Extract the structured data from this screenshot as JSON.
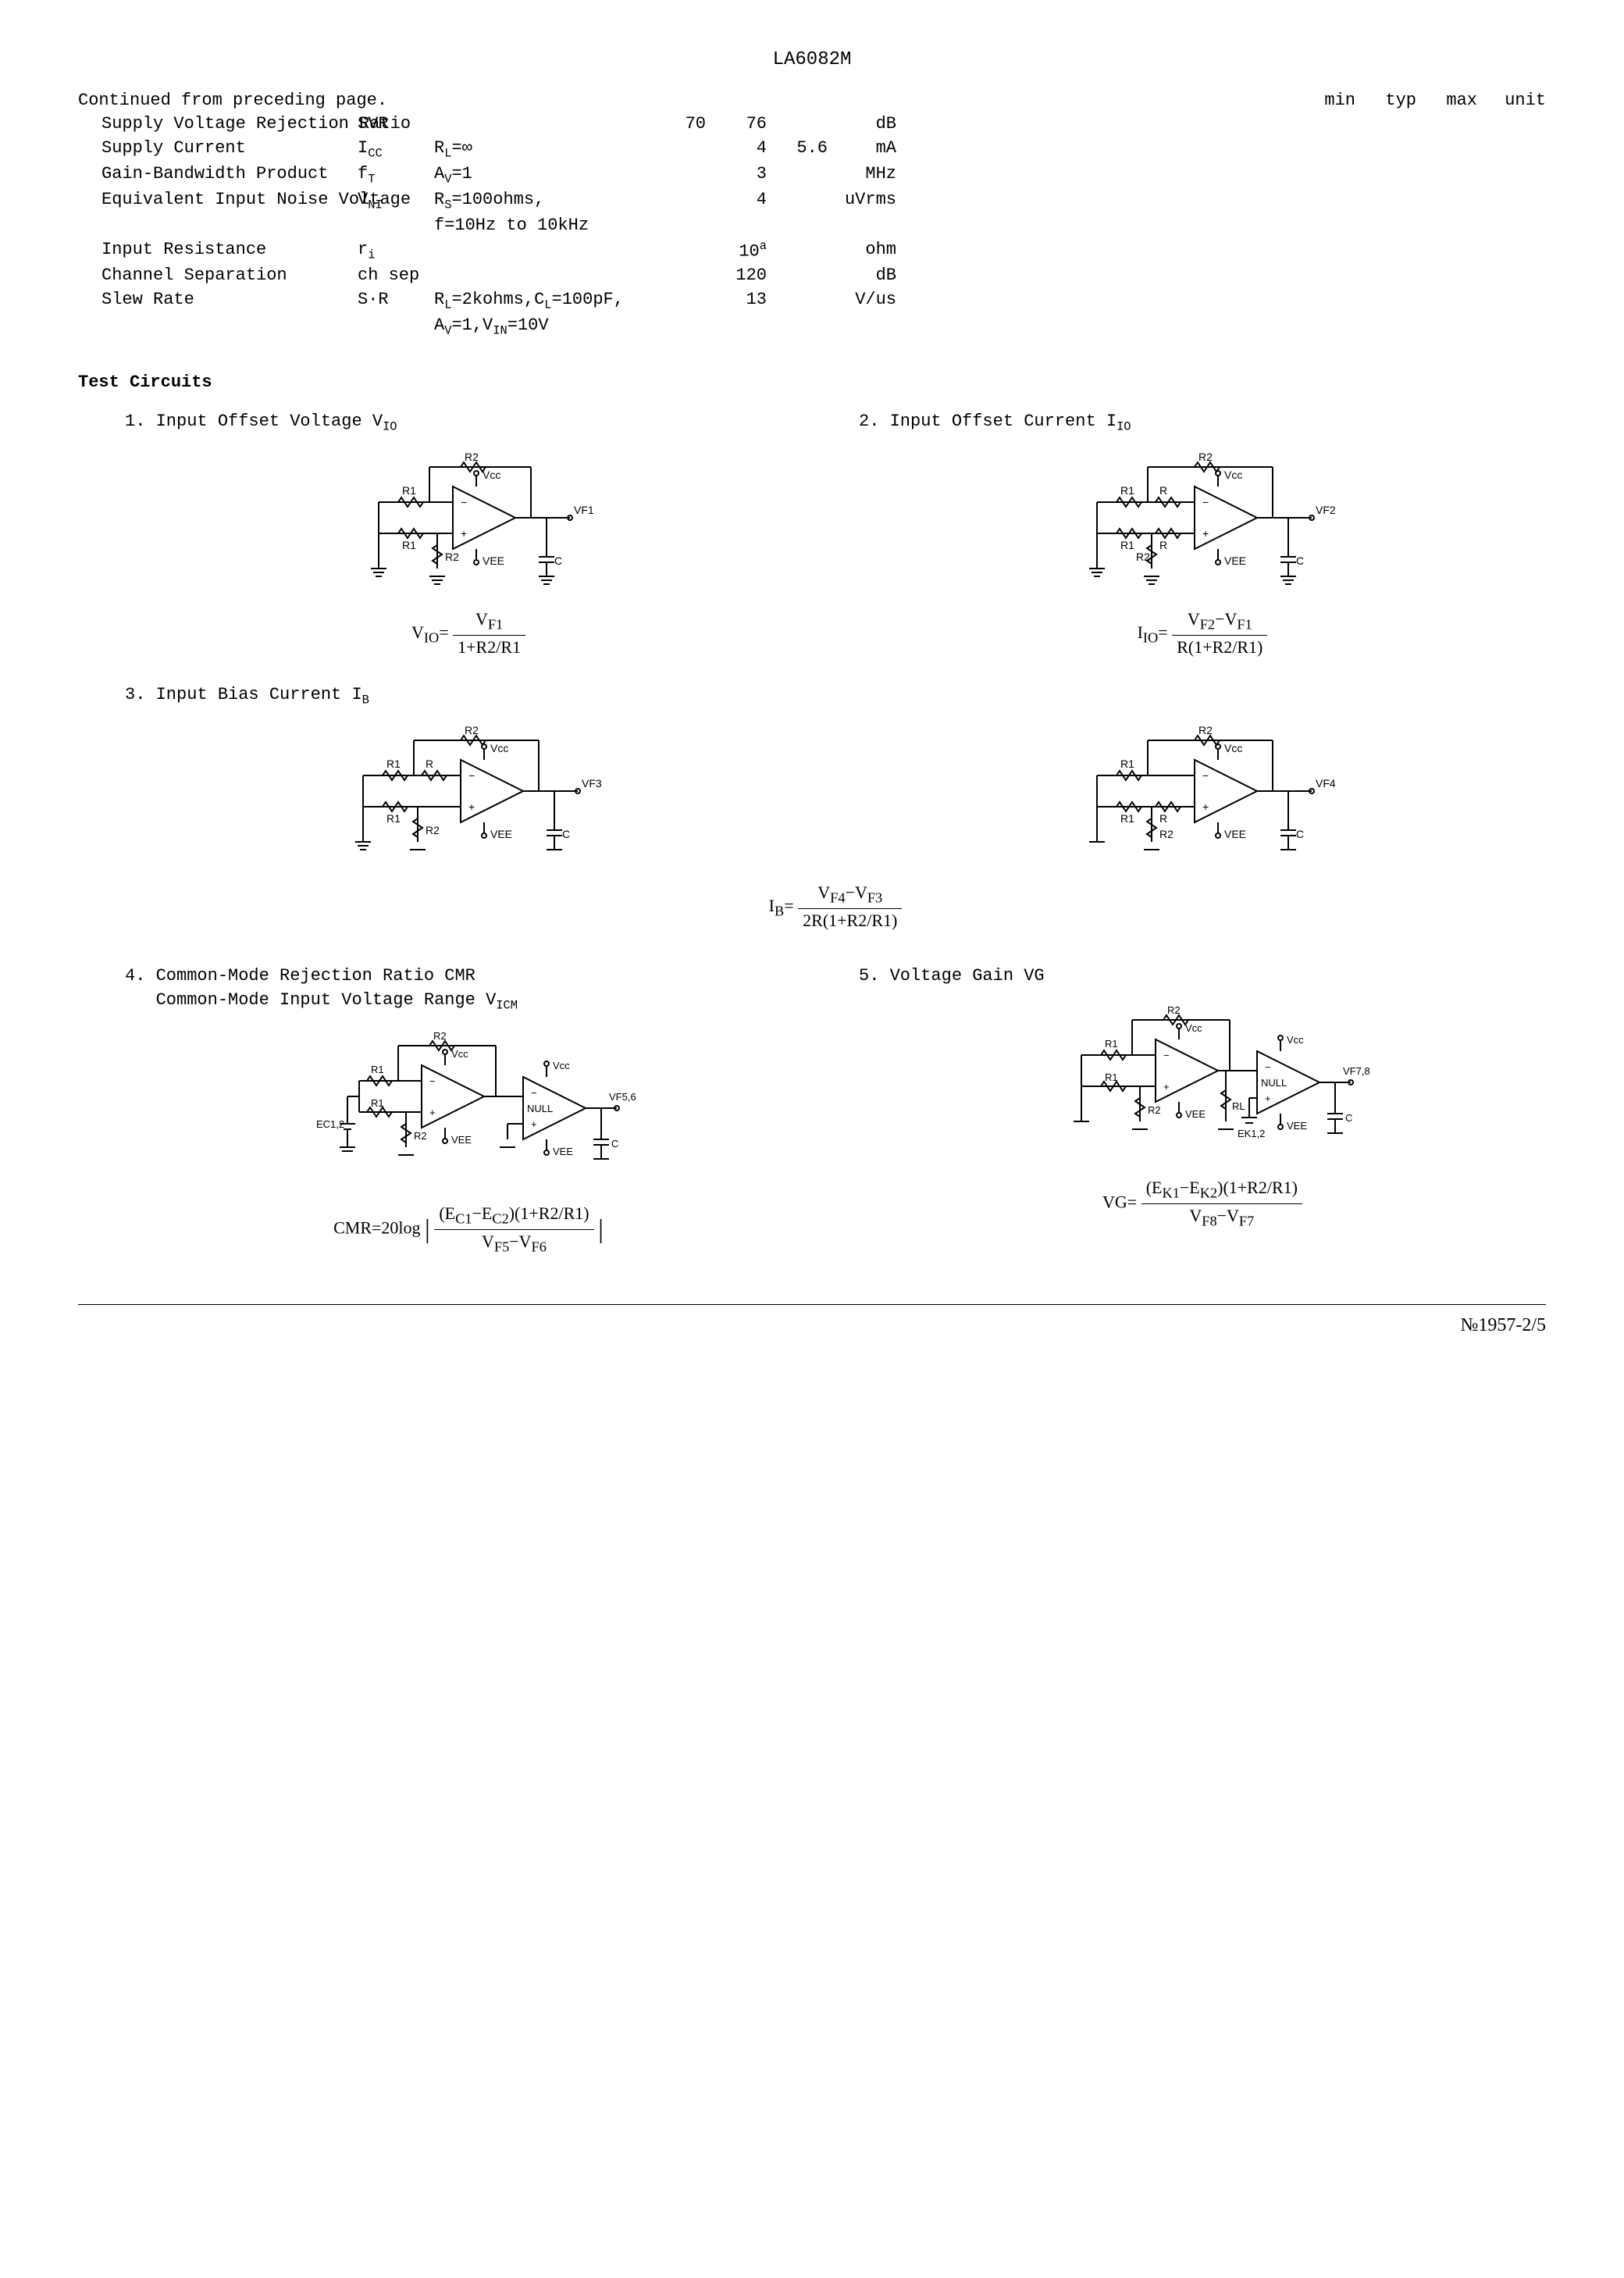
{
  "page_title": "LA6082M",
  "continued_text": "Continued from preceding page.",
  "table_headers": {
    "min": "min",
    "typ": "typ",
    "max": "max",
    "unit": "unit"
  },
  "spec_rows": [
    {
      "param": "Supply Voltage Rejection Ratio",
      "sym": "SVR",
      "cond": "",
      "min": "70",
      "typ": "76",
      "max": "",
      "unit": "dB"
    },
    {
      "param": "Supply Current",
      "sym_html": "I<span class='sub'>CC</span>",
      "cond_html": "R<span class='sub'>L</span>=∞",
      "min": "",
      "typ": "4",
      "max": "5.6",
      "unit": "mA"
    },
    {
      "param": "Gain-Bandwidth Product",
      "sym_html": "f<span class='sub'>T</span>",
      "cond_html": "A<span class='sub'>V</span>=1",
      "min": "",
      "typ": "3",
      "max": "",
      "unit": "MHz"
    },
    {
      "param": "Equivalent Input Noise Voltage",
      "sym_html": "V<span class='sub'>NI</span>",
      "cond_html": "R<span class='sub'>S</span>=100ohms,<br>f=10Hz to 10kHz",
      "min": "",
      "typ": "4",
      "max": "",
      "unit": "uVrms"
    },
    {
      "param": "Input Resistance",
      "sym_html": "r<span class='sub'>i</span>",
      "cond": "",
      "min": "",
      "typ_html": "10<span class='sup'>a</span>",
      "max": "",
      "unit": "ohm"
    },
    {
      "param": "Channel Separation",
      "sym": "ch sep",
      "cond": "",
      "min": "",
      "typ": "120",
      "max": "",
      "unit": "dB"
    },
    {
      "param": "Slew Rate",
      "sym": "S·R",
      "cond_html": "R<span class='sub'>L</span>=2kohms,C<span class='sub'>L</span>=100pF,<br>A<span class='sub'>V</span>=1,V<span class='sub'>IN</span>=10V",
      "min": "",
      "typ": "13",
      "max": "",
      "unit": "V/us"
    }
  ],
  "section_title": "Test Circuits",
  "tests": {
    "t1": {
      "title_html": "1. Input Offset Voltage V<span class='sub'>IO</span>",
      "formula_lhs": "V<sub>IO</sub>=",
      "formula_num": "V<sub>F1</sub>",
      "formula_den": "1+R2/R1"
    },
    "t2": {
      "title_html": "2. Input Offset Current I<span class='sub'>IO</span>",
      "formula_lhs": "I<sub>IO</sub>=",
      "formula_num": "V<sub>F2</sub>−V<sub>F1</sub>",
      "formula_den": "R(1+R2/R1)"
    },
    "t3": {
      "title_html": "3. Input Bias Current I<span class='sub'>B</span>",
      "formula_lhs": "I<sub>B</sub>=",
      "formula_num": "V<sub>F4</sub>−V<sub>F3</sub>",
      "formula_den": "2R(1+R2/R1)"
    },
    "t4": {
      "title_html": "4. Common-Mode Rejection Ratio CMR<br>&nbsp;&nbsp;&nbsp;Common-Mode Input Voltage Range V<span class='sub'>ICM</span>",
      "formula_lhs": "CMR=20log",
      "formula_num": "(E<sub>C1</sub>−E<sub>C2</sub>)(1+R2/R1)",
      "formula_den": "V<sub>F5</sub>−V<sub>F6</sub>"
    },
    "t5": {
      "title_html": "5. Voltage Gain VG",
      "formula_lhs": "VG=",
      "formula_num": "(E<sub>K1</sub>−E<sub>K2</sub>)(1+R2/R1)",
      "formula_den": "V<sub>F8</sub>−V<sub>F7</sub>"
    }
  },
  "circuit_labels": {
    "c1": {
      "R1a": "R1",
      "R1b": "R1",
      "R2a": "R2",
      "R2b": "R2",
      "Vcc": "Vcc",
      "VEE": "VEE",
      "C": "C",
      "out": "VF1"
    },
    "c2": {
      "R1a": "R1",
      "R1b": "R1",
      "R2a": "R2",
      "R2b": "R2",
      "R": "R",
      "Vcc": "Vcc",
      "VEE": "VEE",
      "C": "C",
      "out": "VF2"
    },
    "c3a": {
      "R1a": "R1",
      "R1b": "R1",
      "R2a": "R2",
      "R2b": "R2",
      "R": "R",
      "Vcc": "Vcc",
      "VEE": "VEE",
      "C": "C",
      "out": "VF3"
    },
    "c3b": {
      "R1a": "R1",
      "R1b": "R1",
      "R2a": "R2",
      "R2b": "R2",
      "R": "R",
      "Vcc": "Vcc",
      "VEE": "VEE",
      "C": "C",
      "out": "VF4"
    },
    "c4": {
      "R1a": "R1",
      "R1b": "R1",
      "R2a": "R2",
      "R2b": "R2",
      "Vcc": "Vcc",
      "VEE": "VEE",
      "C": "C",
      "out": "VF5,6",
      "Ec": "EC1,2",
      "Null": "NULL"
    },
    "c5": {
      "R1a": "R1",
      "R1b": "R1",
      "R2a": "R2",
      "R2b": "R2",
      "RL": "RL",
      "Vcc": "Vcc",
      "VEE": "VEE",
      "C": "C",
      "out": "VF7,8",
      "Ek": "EK1,2",
      "Null": "NULL"
    }
  },
  "footer_text": "№1957-2/5"
}
